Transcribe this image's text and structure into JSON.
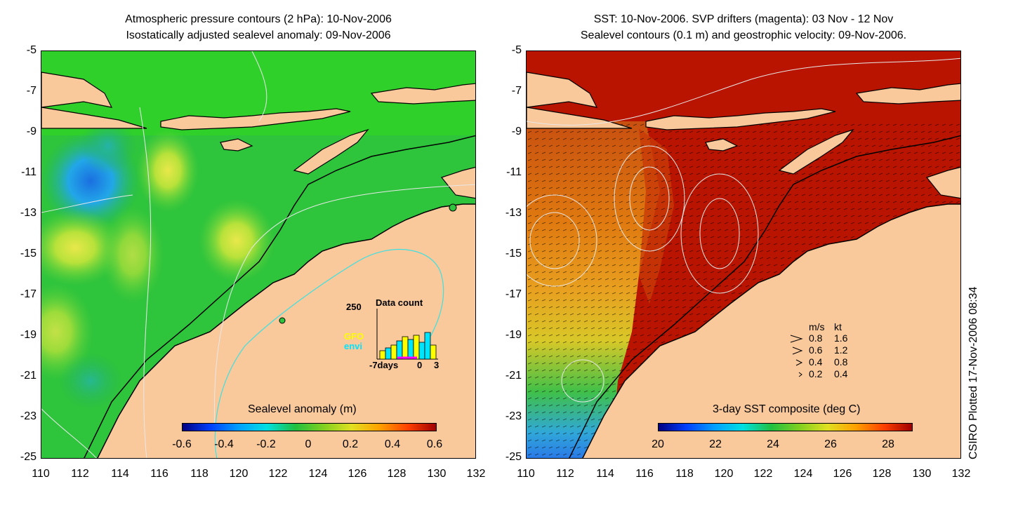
{
  "left_panel": {
    "title_line1": "Atmospheric pressure contours (2 hPa): 10-Nov-2006",
    "title_line2": "Isostatically adjusted sealevel anomaly: 09-Nov-2006",
    "colorbar_label": "Sealevel anomaly (m)",
    "colorbar_ticks": [
      "-0.6",
      "-0.4",
      "-0.2",
      "0",
      "0.2",
      "0.4",
      "0.6"
    ],
    "inset": {
      "title": "Data count",
      "y_label": "250",
      "series_labels": [
        "GFO",
        "envi"
      ],
      "series_colors": [
        "#ffff00",
        "#00e5ff"
      ],
      "x_labels": [
        "-7days",
        "0",
        "3"
      ]
    }
  },
  "right_panel": {
    "title_line1": "SST: 10-Nov-2006. SVP drifters (magenta): 03 Nov - 12 Nov",
    "title_line2": "Sealevel contours (0.1 m) and geostrophic velocity: 09-Nov-2006.",
    "colorbar_label": "3-day SST composite (deg C)",
    "colorbar_ticks": [
      "20",
      "22",
      "24",
      "26",
      "28"
    ],
    "velocity_legend": {
      "header_ms": "m/s",
      "header_kt": "kt",
      "rows": [
        {
          "ms": "0.8",
          "kt": "1.6"
        },
        {
          "ms": "0.6",
          "kt": "1.2"
        },
        {
          "ms": "0.4",
          "kt": "0.8"
        },
        {
          "ms": "0.2",
          "kt": "0.4"
        }
      ]
    }
  },
  "axes": {
    "y_ticks": [
      "-5",
      "-7",
      "-9",
      "-11",
      "-13",
      "-15",
      "-17",
      "-19",
      "-21",
      "-23",
      "-25"
    ],
    "x_ticks": [
      "110",
      "112",
      "114",
      "116",
      "118",
      "120",
      "122",
      "124",
      "126",
      "128",
      "130",
      "132"
    ]
  },
  "credit": "CSIRO Plotted 17-Nov-2006 08:34",
  "colors": {
    "land": "#f9c89b",
    "ocean_green": "#22c43a",
    "sst_red": "#b81400"
  }
}
